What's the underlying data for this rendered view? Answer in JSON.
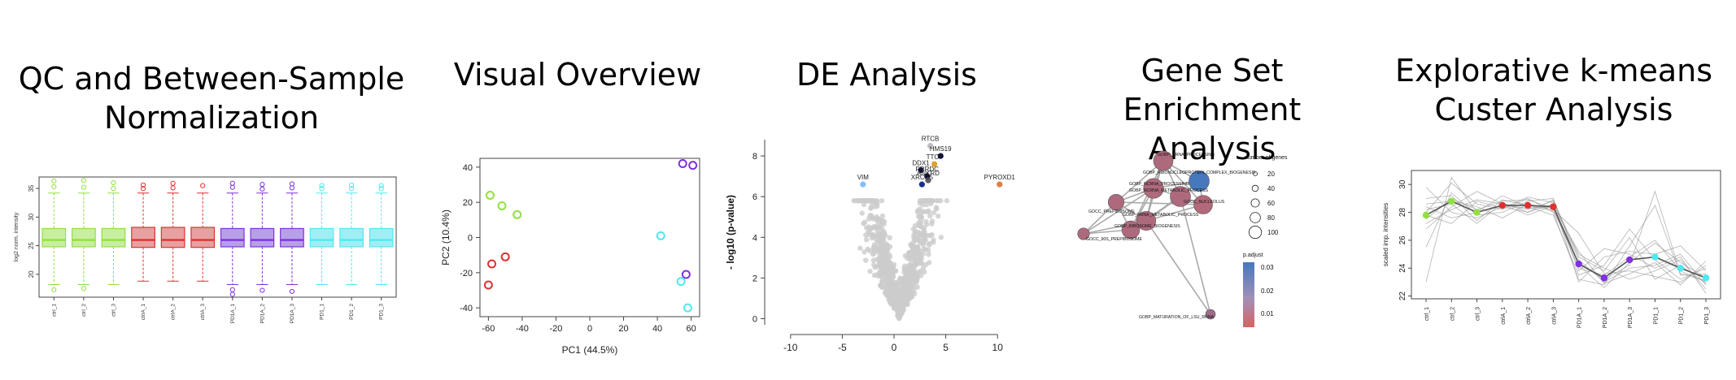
{
  "titles": {
    "qc_line1": "QC and Between-Sample",
    "qc_line2": "Normalization",
    "overview": "Visual Overview",
    "de": "DE Analysis",
    "gsea_line1": "Gene Set",
    "gsea_line2": "Enrichment Analysis",
    "kmeans_line1": "Explorative k-means",
    "kmeans_line2": "Custer Analysis"
  },
  "colors": {
    "ctrl": "#90e040",
    "ctrl_fill": "#c8eea0",
    "ctrlA": "#e03030",
    "ctrlA_fill": "#e8a0a0",
    "pd1A": "#8030e0",
    "pd1A_fill": "#b8a0e8",
    "pd1": "#50e8f0",
    "pd1_fill": "#a0eef4",
    "volcano_gray": "#cccccc"
  },
  "chart_data": [
    {
      "id": "qc-boxplot",
      "type": "box",
      "ylabel": "log2 norm. intensity",
      "ylim": [
        16,
        37
      ],
      "yticks": [
        20,
        25,
        30,
        35
      ],
      "categories": [
        "ctrl_1",
        "ctrl_2",
        "ctrl_3",
        "ctrlA_1",
        "ctrlA_2",
        "ctrlA_3",
        "PD1A_1",
        "PD1A_2",
        "PD1A_3",
        "PD1_1",
        "PD1_2",
        "PD1_3"
      ],
      "groups": [
        "ctrl",
        "ctrl",
        "ctrl",
        "ctrlA",
        "ctrlA",
        "ctrlA",
        "pd1A",
        "pd1A",
        "pd1A",
        "pd1",
        "pd1",
        "pd1"
      ],
      "q1": [
        24.8,
        24.8,
        24.8,
        24.7,
        24.7,
        24.7,
        24.8,
        24.8,
        24.8,
        24.8,
        24.8,
        24.8
      ],
      "median": [
        26.0,
        26.0,
        26.0,
        26.0,
        26.0,
        26.0,
        26.0,
        26.0,
        26.0,
        26.0,
        26.0,
        26.0
      ],
      "q3": [
        28.0,
        28.0,
        28.0,
        28.2,
        28.2,
        28.2,
        28.0,
        28.0,
        28.0,
        28.0,
        28.0,
        28.0
      ],
      "whisker_low": [
        18.2,
        18.2,
        18.2,
        18.8,
        18.8,
        18.8,
        18.2,
        18.2,
        18.2,
        18.2,
        18.2,
        18.2
      ],
      "whisker_high": [
        34.2,
        34.2,
        34.2,
        34.2,
        34.2,
        34.2,
        34.2,
        34.2,
        34.2,
        34.2,
        34.2,
        34.2
      ],
      "outliers": [
        [
          36.3,
          35.3,
          17.3
        ],
        [
          36.4,
          35.2,
          17.5
        ],
        [
          36.0,
          35.0
        ],
        [
          35.6,
          35.0
        ],
        [
          35.9,
          35.1
        ],
        [
          35.5
        ],
        [
          35.9,
          35.2,
          17.3,
          16.5
        ],
        [
          35.7,
          34.9,
          17.2
        ],
        [
          35.8,
          35.1,
          17.0
        ],
        [
          35.5,
          35.0
        ],
        [
          35.6,
          35.0
        ],
        [
          35.5,
          35.0
        ]
      ]
    },
    {
      "id": "pca-scatter",
      "type": "scatter",
      "xlabel": "PC1  (44.5%)",
      "ylabel": "PC2  (10.4%)",
      "xlim": [
        -65,
        65
      ],
      "ylim": [
        -45,
        45
      ],
      "xticks": [
        -60,
        -40,
        -20,
        0,
        20,
        40,
        60
      ],
      "yticks": [
        -40,
        -20,
        0,
        20,
        40
      ],
      "points": [
        {
          "x": -59,
          "y": 24,
          "g": "ctrl"
        },
        {
          "x": -52,
          "y": 18,
          "g": "ctrl"
        },
        {
          "x": -43,
          "y": 13,
          "g": "ctrl"
        },
        {
          "x": -60,
          "y": -27,
          "g": "ctrlA"
        },
        {
          "x": -58,
          "y": -15,
          "g": "ctrlA"
        },
        {
          "x": -50,
          "y": -11,
          "g": "ctrlA"
        },
        {
          "x": 55,
          "y": 42,
          "g": "pd1A"
        },
        {
          "x": 61,
          "y": 41,
          "g": "pd1A"
        },
        {
          "x": 57,
          "y": -21,
          "g": "pd1A"
        },
        {
          "x": 42,
          "y": 1,
          "g": "pd1"
        },
        {
          "x": 54,
          "y": -25,
          "g": "pd1"
        },
        {
          "x": 58,
          "y": -40,
          "g": "pd1"
        }
      ]
    },
    {
      "id": "volcano",
      "type": "scatter",
      "xlabel": "",
      "ylabel": "- log10 (p-value)",
      "xlim": [
        -12.5,
        12.5
      ],
      "ylim": [
        -0.3,
        8.8
      ],
      "xticks": [
        -10,
        -5,
        0,
        5,
        10
      ],
      "yticks": [
        0,
        2,
        4,
        6,
        8
      ],
      "labeled_points": [
        {
          "label": "RTCB",
          "x": 3.5,
          "y": 8.5,
          "color": "#c0c0c0"
        },
        {
          "label": "HMS19",
          "x": 4.5,
          "y": 8.0,
          "color": "#101040"
        },
        {
          "label": "TTC7",
          "x": 3.9,
          "y": 7.6,
          "color": "#e0a030"
        },
        {
          "label": "DDX1",
          "x": 2.6,
          "y": 7.3,
          "color": "#101040"
        },
        {
          "label": "PRRDC",
          "x": 3.2,
          "y": 7.0,
          "color": "#101040"
        },
        {
          "label": "ANKRD",
          "x": 3.3,
          "y": 6.8,
          "color": "#606060"
        },
        {
          "label": "XRCC5",
          "x": 2.7,
          "y": 6.6,
          "color": "#1a3090"
        },
        {
          "label": "VIM",
          "x": -3.0,
          "y": 6.6,
          "color": "#80c0ff"
        },
        {
          "label": "PYROXD1",
          "x": 10.2,
          "y": 6.6,
          "color": "#e08040"
        }
      ]
    },
    {
      "id": "gsea-network",
      "type": "network",
      "legend_size_title": "number of genes",
      "legend_sizes": [
        20,
        40,
        60,
        80,
        100
      ],
      "legend_color_title": "p.adjust",
      "legend_color_ticks": [
        "0.03",
        "0.02",
        "0.01"
      ],
      "nodes": [
        {
          "label": "GOBP_RRNA_PROCESSING",
          "genes": 90,
          "p": 0.012
        },
        {
          "label": "GOBP_RIBONUCLEOPROTEIN_COMPLEX_BIOGENESIS",
          "genes": 100,
          "p": 0.03
        },
        {
          "label": "GOBP_NCRNA_PROCESSING",
          "genes": 95,
          "p": 0.012
        },
        {
          "label": "GOBP_NCRNA_METABOLIC_PROCESS",
          "genes": 100,
          "p": 0.012
        },
        {
          "label": "GOCC_NUCLEOLUS",
          "genes": 80,
          "p": 0.011
        },
        {
          "label": "GOCC_PREPIBOSOME",
          "genes": 50,
          "p": 0.012
        },
        {
          "label": "GOBP_RRNA_METABOLIC_PROCESS",
          "genes": 85,
          "p": 0.012
        },
        {
          "label": "GOBP_RIBOSOME_BIOGENESIS",
          "genes": 70,
          "p": 0.012
        },
        {
          "label": "GOCC_90S_PREPIBOSOME",
          "genes": 20,
          "p": 0.012
        },
        {
          "label": "GOBP_MATURATION_OF_LSU_RRNA",
          "genes": 10,
          "p": 0.015
        }
      ]
    },
    {
      "id": "kmeans-lines",
      "type": "line",
      "ylabel": "scaled imp. intensities",
      "ylim": [
        21.8,
        31
      ],
      "yticks": [
        22,
        24,
        26,
        28,
        30
      ],
      "categories": [
        "ctrl_1",
        "ctrl_2",
        "ctrl_3",
        "ctrlA_1",
        "ctrlA_2",
        "ctrlA_3",
        "PD1A_1",
        "PD1A_2",
        "PD1A_3",
        "PD1_1",
        "PD1_2",
        "PD1_3"
      ],
      "centroid": [
        27.8,
        28.8,
        28.0,
        28.5,
        28.5,
        28.4,
        24.3,
        23.3,
        24.6,
        24.8,
        24.0,
        23.3
      ],
      "centroid_groups": [
        "ctrl",
        "ctrl",
        "ctrl",
        "ctrlA",
        "ctrlA",
        "ctrlA",
        "pd1A",
        "pd1A",
        "pd1A",
        "pd1",
        "pd1",
        "pd1"
      ],
      "lines": [
        [
          27.5,
          29.0,
          28.2,
          28.8,
          28.9,
          28.3,
          24.0,
          23.5,
          24.8,
          26.0,
          23.8,
          23.0
        ],
        [
          29.8,
          28.0,
          27.6,
          28.4,
          28.0,
          28.6,
          25.0,
          24.0,
          23.2,
          23.8,
          24.6,
          22.5
        ],
        [
          28.0,
          30.1,
          28.6,
          28.2,
          29.0,
          28.0,
          23.2,
          22.8,
          25.6,
          28.5,
          23.5,
          23.6
        ],
        [
          26.8,
          28.4,
          29.5,
          28.6,
          28.2,
          28.8,
          24.6,
          23.0,
          24.0,
          24.2,
          25.0,
          22.8
        ],
        [
          28.4,
          27.6,
          28.0,
          29.2,
          28.4,
          27.8,
          23.5,
          24.2,
          26.8,
          24.6,
          23.2,
          24.0
        ],
        [
          25.5,
          29.4,
          27.8,
          28.0,
          28.8,
          29.0,
          24.2,
          22.6,
          24.4,
          25.8,
          24.4,
          23.3
        ],
        [
          28.6,
          28.8,
          28.4,
          27.6,
          28.6,
          28.2,
          26.5,
          23.6,
          23.8,
          23.4,
          23.0,
          24.2
        ],
        [
          27.2,
          28.2,
          28.9,
          28.6,
          27.8,
          28.5,
          23.8,
          25.4,
          25.0,
          24.0,
          24.8,
          22.2
        ],
        [
          29.0,
          29.2,
          27.4,
          28.9,
          28.5,
          28.1,
          24.4,
          23.2,
          24.2,
          29.5,
          23.6,
          23.1
        ],
        [
          27.8,
          27.2,
          28.8,
          28.3,
          29.1,
          28.7,
          23.0,
          24.8,
          25.2,
          25.0,
          25.6,
          23.8
        ],
        [
          23.0,
          30.5,
          28.0,
          28.5,
          28.3,
          28.4,
          25.2,
          22.9,
          23.6,
          24.4,
          22.8,
          24.5
        ],
        [
          28.2,
          28.6,
          27.2,
          28.7,
          28.0,
          28.9,
          24.8,
          23.8,
          26.2,
          23.2,
          24.2,
          22.9
        ]
      ]
    }
  ]
}
